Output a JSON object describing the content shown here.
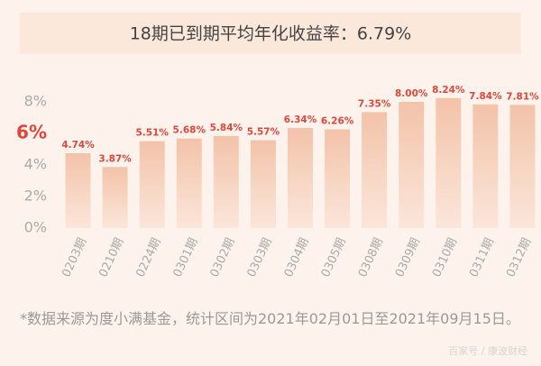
{
  "chart_data": {
    "type": "bar",
    "title": "18期已到期平均年化收益率：6.79%",
    "categories": [
      "0203期",
      "0210期",
      "0224期",
      "0301期",
      "0302期",
      "0303期",
      "0304期",
      "0305期",
      "0308期",
      "0309期",
      "0310期",
      "0311期",
      "0312期"
    ],
    "values": [
      4.74,
      3.87,
      5.51,
      5.68,
      5.84,
      5.57,
      6.34,
      6.26,
      7.35,
      8.0,
      8.24,
      7.84,
      7.81
    ],
    "value_labels": [
      "4.74%",
      "3.87%",
      "5.51%",
      "5.68%",
      "5.84%",
      "5.57%",
      "6.34%",
      "6.26%",
      "7.35%",
      "8.00%",
      "8.24%",
      "7.84%",
      "7.81%"
    ],
    "color": "#f3c3a9",
    "ylim": [
      0,
      8
    ],
    "yticks": [
      {
        "value": 0,
        "label": "0%"
      },
      {
        "value": 2,
        "label": "2%"
      },
      {
        "value": 4,
        "label": "4%"
      },
      {
        "value": 6,
        "label": "6%"
      },
      {
        "value": 8,
        "label": "8%"
      }
    ],
    "highlight_ytick": 6,
    "grid": false,
    "footnote": "*数据来源为度小满基金，统计区间为2021年02月01日至2021年09月15日。",
    "watermark": "百家号 / 康波财经"
  }
}
